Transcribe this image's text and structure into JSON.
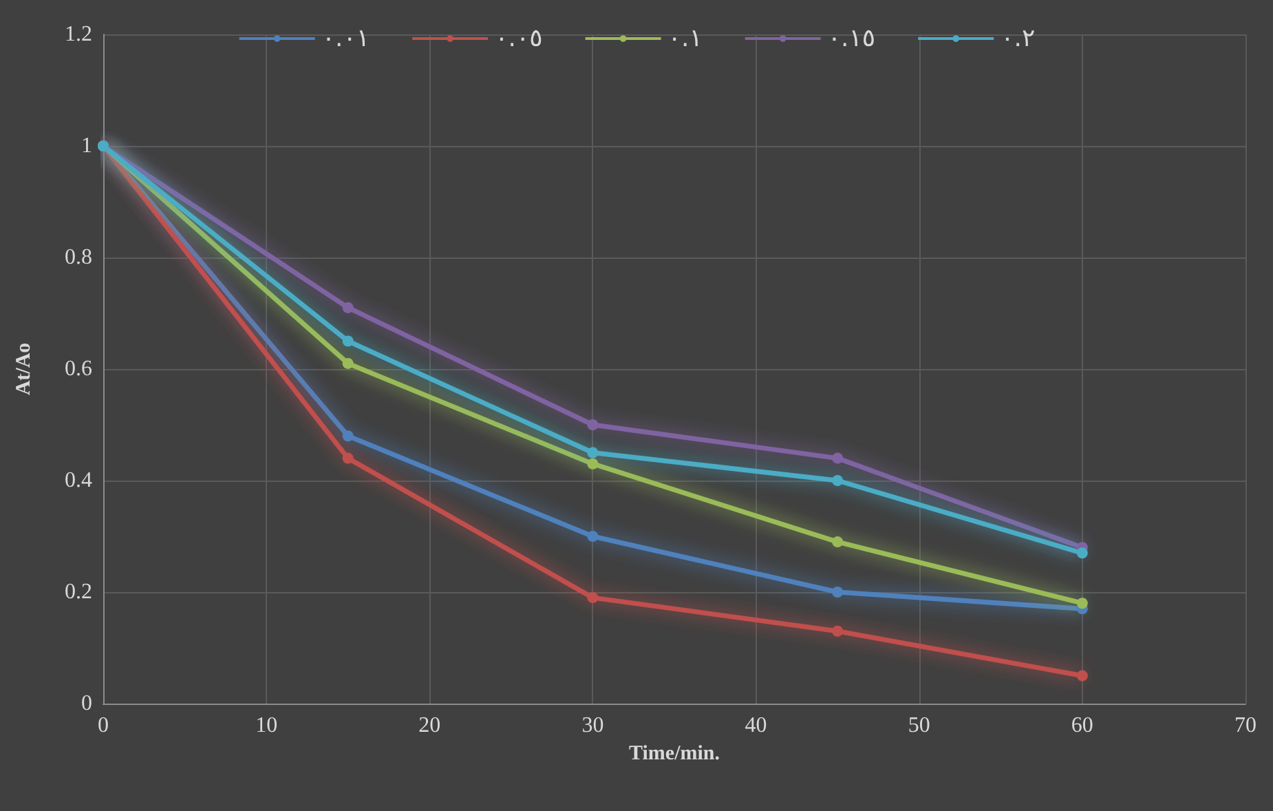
{
  "chart_data": {
    "type": "line",
    "xlabel": "Time/min.",
    "ylabel": "At/Ao",
    "x": [
      0,
      15,
      30,
      45,
      60
    ],
    "series": [
      {
        "name": "٠.٠١",
        "color": "#4f81bd",
        "values": [
          1,
          0.48,
          0.3,
          0.2,
          0.17
        ]
      },
      {
        "name": "٠.٠٥",
        "color": "#c0504d",
        "values": [
          1,
          0.44,
          0.19,
          0.13,
          0.05
        ]
      },
      {
        "name": "٠.١",
        "color": "#9bbb59",
        "values": [
          1,
          0.61,
          0.43,
          0.29,
          0.18
        ]
      },
      {
        "name": "٠.١٥",
        "color": "#8064a2",
        "values": [
          1,
          0.71,
          0.5,
          0.44,
          0.28
        ]
      },
      {
        "name": "٠.٢",
        "color": "#4bacc6",
        "values": [
          1,
          0.65,
          0.45,
          0.4,
          0.27
        ]
      }
    ],
    "xlim": [
      0,
      70
    ],
    "xticks": [
      0,
      10,
      20,
      30,
      40,
      50,
      60,
      70
    ],
    "ylim": [
      0,
      1.2
    ],
    "yticks": [
      0,
      0.2,
      0.4,
      0.6,
      0.8,
      1,
      1.2
    ],
    "grid": true,
    "legend": "top",
    "marker": "circle",
    "line_style": "solid"
  }
}
